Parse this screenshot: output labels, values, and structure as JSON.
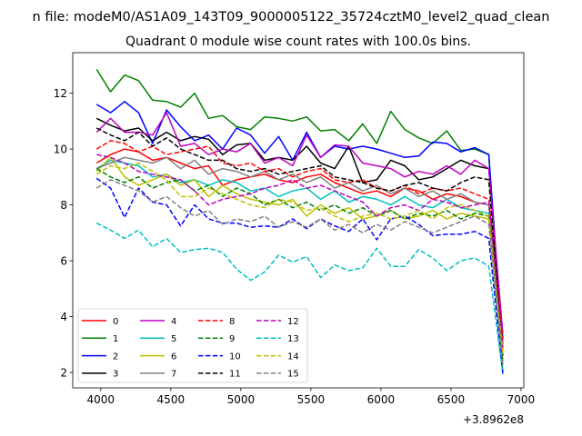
{
  "figure": {
    "suptitle": "n file: modeM0/AS1A09_143T09_9000005122_35724cztM0_level2_quad_clean",
    "title": "Quadrant 0 module wise count rates with 100.0s bins.",
    "x_offset_label": "+3.8962e8"
  },
  "chart_data": {
    "type": "line",
    "title": "Quadrant 0 module wise count rates with 100.0s bins.",
    "xlabel": "",
    "ylabel": "",
    "x_offset": 389620000,
    "x": [
      3970,
      4070,
      4170,
      4270,
      4370,
      4470,
      4570,
      4670,
      4770,
      4870,
      4970,
      5070,
      5170,
      5270,
      5370,
      5470,
      5570,
      5670,
      5770,
      5870,
      5970,
      6070,
      6170,
      6270,
      6370,
      6470,
      6570,
      6670,
      6770,
      6870
    ],
    "xlim": [
      3800,
      7020
    ],
    "ylim": [
      1.45,
      13.45
    ],
    "xticks": [
      4000,
      4500,
      5000,
      5500,
      6000,
      6500,
      7000
    ],
    "yticks": [
      2,
      4,
      6,
      8,
      10,
      12
    ],
    "grid": false,
    "legend": {
      "position": "lower-left",
      "columns": 4
    },
    "series": [
      {
        "name": "0",
        "color": "#ff0000",
        "dash": "solid",
        "values": [
          9.5,
          9.8,
          10.0,
          9.9,
          9.6,
          9.7,
          9.5,
          9.3,
          9.4,
          8.7,
          8.9,
          9.0,
          9.1,
          8.9,
          8.8,
          9.0,
          9.1,
          8.8,
          8.6,
          8.4,
          8.5,
          8.3,
          8.6,
          8.5,
          8.2,
          8.4,
          8.3,
          8.1,
          8.0,
          3.0
        ]
      },
      {
        "name": "1",
        "color": "#008000",
        "dash": "solid",
        "values": [
          12.85,
          12.05,
          12.65,
          12.45,
          11.75,
          11.7,
          11.5,
          12.0,
          11.1,
          11.2,
          10.8,
          10.7,
          11.15,
          11.1,
          11.0,
          11.15,
          10.65,
          10.7,
          10.3,
          10.9,
          10.2,
          11.35,
          10.7,
          10.4,
          10.2,
          10.65,
          9.95,
          10.0,
          9.8,
          2.0
        ]
      },
      {
        "name": "2",
        "color": "#0000ff",
        "dash": "solid",
        "values": [
          11.6,
          11.3,
          11.7,
          11.3,
          10.2,
          11.4,
          10.8,
          10.3,
          10.5,
          10.0,
          10.75,
          10.5,
          9.85,
          10.45,
          9.6,
          10.6,
          9.7,
          10.1,
          10.0,
          10.1,
          10.0,
          9.85,
          9.7,
          9.75,
          10.25,
          10.2,
          9.9,
          10.05,
          9.8,
          2.9
        ]
      },
      {
        "name": "3",
        "color": "#000000",
        "dash": "solid",
        "values": [
          11.1,
          10.85,
          10.65,
          10.75,
          10.3,
          10.6,
          10.3,
          10.45,
          10.35,
          9.8,
          10.15,
          10.2,
          9.6,
          9.7,
          9.6,
          10.1,
          9.5,
          9.3,
          10.1,
          8.8,
          8.9,
          9.6,
          9.4,
          8.9,
          9.0,
          9.3,
          9.6,
          9.4,
          9.3,
          3.2
        ]
      },
      {
        "name": "4",
        "color": "#bf00bf",
        "dash": "solid",
        "values": [
          10.6,
          11.1,
          10.6,
          10.6,
          10.5,
          11.3,
          10.1,
          10.2,
          9.8,
          10.0,
          9.9,
          10.2,
          9.5,
          9.7,
          9.4,
          10.5,
          9.7,
          10.15,
          10.1,
          9.5,
          9.4,
          9.3,
          9.0,
          9.2,
          9.1,
          9.4,
          9.1,
          9.6,
          9.3,
          3.4
        ]
      },
      {
        "name": "5",
        "color": "#00bfbf",
        "dash": "solid",
        "values": [
          9.3,
          9.6,
          9.5,
          9.4,
          9.0,
          9.1,
          8.8,
          8.9,
          8.7,
          8.9,
          8.8,
          8.5,
          8.6,
          8.3,
          8.5,
          8.6,
          8.2,
          8.5,
          8.1,
          8.3,
          8.2,
          8.0,
          8.3,
          8.0,
          7.9,
          8.2,
          7.9,
          7.8,
          7.7,
          2.7
        ]
      },
      {
        "name": "6",
        "color": "#bfbf00",
        "dash": "solid",
        "values": [
          9.2,
          9.7,
          9.0,
          8.7,
          8.9,
          9.1,
          8.7,
          8.9,
          8.3,
          8.7,
          8.4,
          8.2,
          8.1,
          8.0,
          8.2,
          7.6,
          8.0,
          7.7,
          7.9,
          7.5,
          7.6,
          7.8,
          7.5,
          7.6,
          7.8,
          7.5,
          7.7,
          7.6,
          7.5,
          2.6
        ]
      },
      {
        "name": "7",
        "color": "#808080",
        "dash": "solid",
        "values": [
          9.3,
          9.5,
          9.7,
          9.6,
          9.5,
          9.7,
          9.3,
          9.6,
          9.1,
          9.3,
          9.2,
          9.0,
          9.2,
          8.9,
          9.1,
          8.8,
          9.0,
          8.6,
          8.8,
          8.5,
          8.7,
          8.4,
          8.6,
          8.3,
          8.5,
          8.2,
          8.4,
          8.1,
          8.0,
          2.9
        ]
      },
      {
        "name": "8",
        "color": "#ff0000",
        "dash": "dashed",
        "values": [
          10.0,
          10.3,
          10.2,
          9.9,
          10.1,
          9.8,
          9.9,
          10.0,
          10.1,
          9.5,
          9.4,
          9.5,
          9.2,
          9.3,
          9.0,
          9.2,
          9.3,
          8.9,
          8.8,
          8.9,
          8.6,
          8.5,
          8.7,
          8.4,
          8.6,
          8.5,
          8.6,
          8.4,
          8.2,
          3.1
        ]
      },
      {
        "name": "9",
        "color": "#008000",
        "dash": "dashed",
        "values": [
          9.3,
          9.0,
          8.8,
          9.0,
          8.6,
          8.8,
          8.9,
          8.5,
          8.7,
          8.3,
          8.6,
          8.4,
          8.0,
          8.2,
          7.9,
          8.1,
          7.8,
          8.0,
          7.7,
          7.9,
          7.6,
          7.8,
          7.5,
          7.7,
          7.6,
          7.8,
          7.5,
          7.7,
          7.6,
          2.4
        ]
      },
      {
        "name": "10",
        "color": "#0000ff",
        "dash": "dashed",
        "values": [
          8.95,
          8.6,
          7.55,
          8.6,
          8.1,
          8.0,
          7.25,
          8.0,
          7.5,
          7.35,
          7.35,
          7.2,
          7.25,
          7.2,
          7.5,
          7.15,
          7.5,
          7.25,
          7.05,
          7.5,
          6.75,
          7.5,
          7.6,
          7.3,
          6.9,
          6.95,
          6.95,
          7.05,
          6.8,
          1.95
        ]
      },
      {
        "name": "11",
        "color": "#000000",
        "dash": "dashed",
        "values": [
          10.75,
          10.5,
          10.3,
          10.6,
          10.1,
          10.4,
          10.0,
          9.8,
          9.6,
          9.6,
          9.3,
          9.2,
          9.3,
          9.1,
          9.2,
          9.3,
          9.4,
          9.0,
          8.9,
          8.8,
          8.6,
          8.5,
          8.7,
          8.8,
          8.6,
          8.5,
          8.8,
          9.0,
          8.9,
          2.6
        ]
      },
      {
        "name": "12",
        "color": "#bf00bf",
        "dash": "dashed",
        "values": [
          9.8,
          9.7,
          9.5,
          9.2,
          9.1,
          9.0,
          8.9,
          8.5,
          8.0,
          8.2,
          8.3,
          8.4,
          8.6,
          8.7,
          8.9,
          8.6,
          8.7,
          8.5,
          8.3,
          8.1,
          7.6,
          7.9,
          8.0,
          7.8,
          8.2,
          8.1,
          7.9,
          8.0,
          8.1,
          2.8
        ]
      },
      {
        "name": "13",
        "color": "#00bfbf",
        "dash": "dashed",
        "values": [
          7.35,
          7.1,
          6.8,
          7.1,
          6.5,
          6.8,
          6.3,
          6.4,
          6.45,
          6.3,
          5.7,
          5.3,
          5.6,
          6.2,
          5.95,
          6.15,
          5.4,
          5.85,
          5.65,
          5.75,
          6.45,
          5.8,
          5.8,
          6.4,
          6.1,
          5.65,
          6.0,
          6.1,
          5.8,
          2.0
        ]
      },
      {
        "name": "14",
        "color": "#bfbf00",
        "dash": "dashed",
        "values": [
          9.1,
          9.4,
          9.3,
          9.5,
          9.2,
          8.9,
          8.3,
          8.3,
          8.6,
          8.4,
          8.2,
          8.0,
          7.9,
          8.2,
          8.1,
          7.8,
          7.9,
          7.6,
          7.4,
          7.6,
          7.7,
          7.5,
          7.6,
          7.8,
          7.5,
          7.9,
          8.0,
          7.8,
          7.6,
          2.7
        ]
      },
      {
        "name": "15",
        "color": "#808080",
        "dash": "dashed",
        "values": [
          8.6,
          8.9,
          8.7,
          8.5,
          8.1,
          8.3,
          7.9,
          7.6,
          7.8,
          7.3,
          7.5,
          7.4,
          7.6,
          7.2,
          7.4,
          7.2,
          7.5,
          7.1,
          7.3,
          7.0,
          7.3,
          7.1,
          7.4,
          7.2,
          7.0,
          7.2,
          7.4,
          7.6,
          7.3,
          2.3
        ]
      }
    ]
  }
}
